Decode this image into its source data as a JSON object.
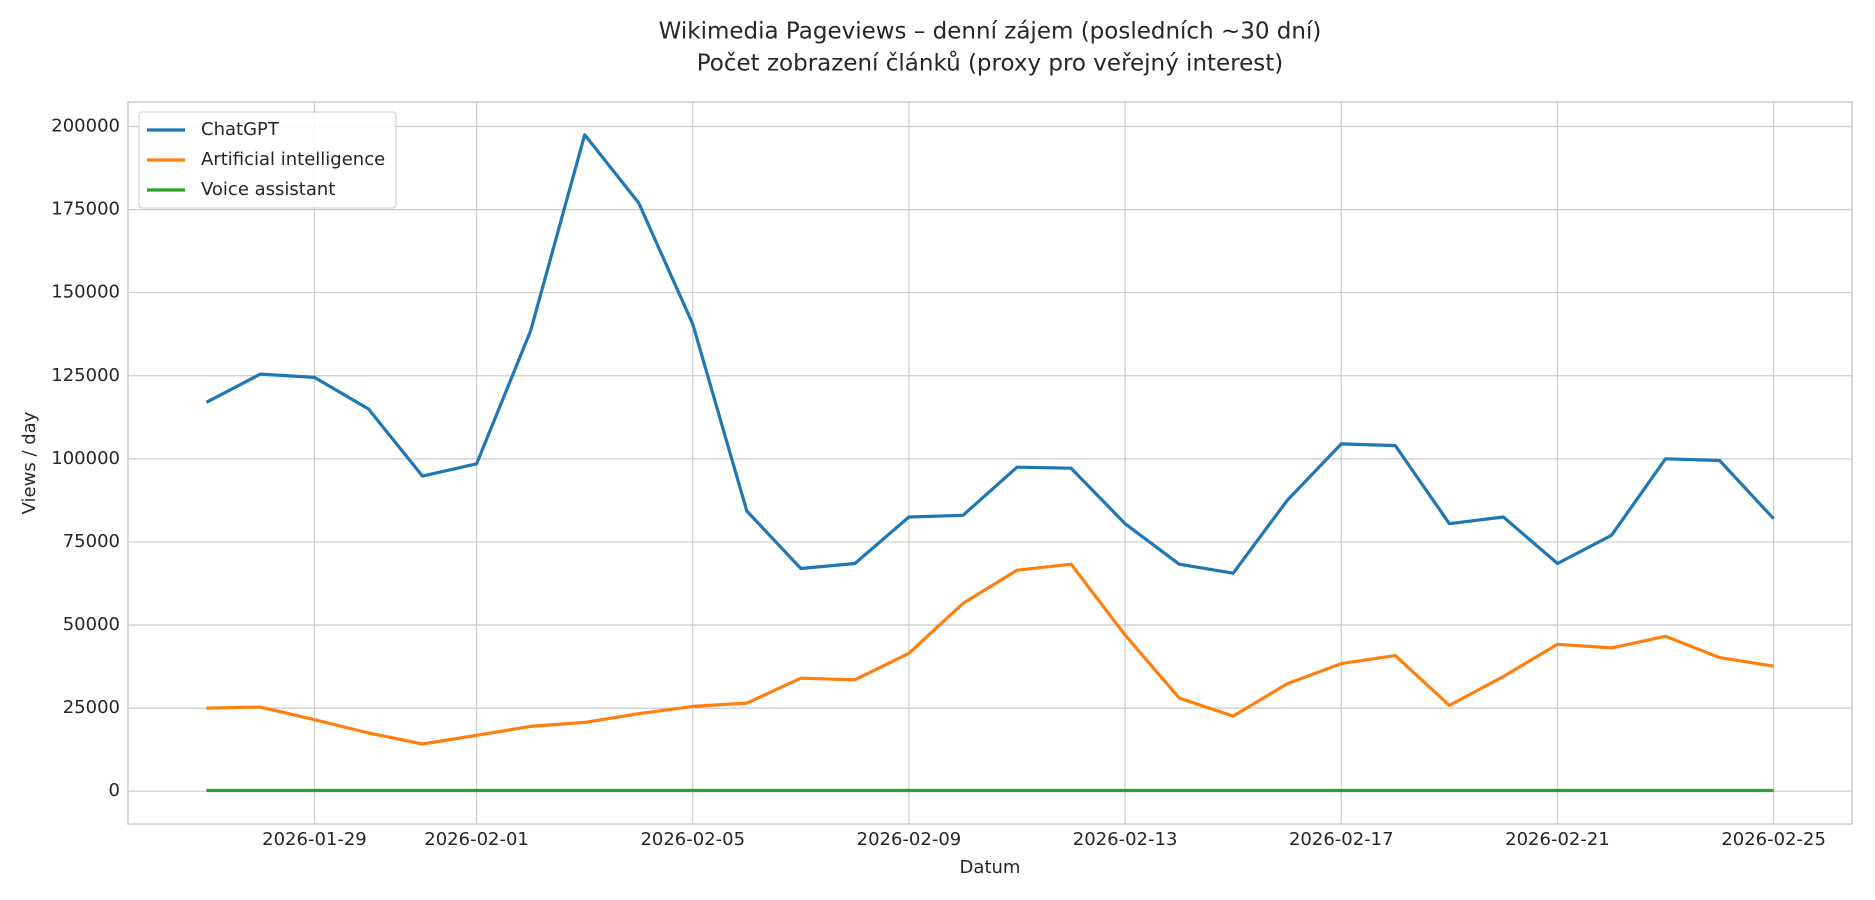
{
  "chart_data": {
    "type": "line",
    "title": "Wikimedia Pageviews – denní zájem (posledních ~30 dní)",
    "subtitle": "Počet zobrazení článků (proxy pro veřejný interest)",
    "x_label": "Datum",
    "y_label": "Views / day",
    "x": [
      "2026-01-27",
      "2026-01-28",
      "2026-01-29",
      "2026-01-30",
      "2026-01-31",
      "2026-02-01",
      "2026-02-02",
      "2026-02-03",
      "2026-02-04",
      "2026-02-05",
      "2026-02-06",
      "2026-02-07",
      "2026-02-08",
      "2026-02-09",
      "2026-02-10",
      "2026-02-11",
      "2026-02-12",
      "2026-02-13",
      "2026-02-14",
      "2026-02-15",
      "2026-02-16",
      "2026-02-17",
      "2026-02-18",
      "2026-02-19",
      "2026-02-20",
      "2026-02-21",
      "2026-02-22",
      "2026-02-23",
      "2026-02-24",
      "2026-02-25"
    ],
    "series": [
      {
        "name": "ChatGPT",
        "color": "#1f77b4",
        "values": [
          117000,
          125500,
          124500,
          115000,
          94800,
          98500,
          138500,
          197500,
          177000,
          140500,
          84300,
          67000,
          68500,
          82500,
          83000,
          97500,
          97200,
          80500,
          68300,
          65600,
          87500,
          104500,
          104000,
          80500,
          82500,
          68500,
          77000,
          100000,
          99500,
          82000
        ]
      },
      {
        "name": "Artificial intelligence",
        "color": "#ff7f0e",
        "values": [
          25000,
          25300,
          21500,
          17500,
          14200,
          16800,
          19500,
          20700,
          23300,
          25500,
          26500,
          34000,
          33500,
          41500,
          56500,
          66500,
          68300,
          47000,
          28000,
          22600,
          32300,
          38400,
          40800,
          25800,
          34500,
          44200,
          43100,
          46600,
          40200,
          37600
        ]
      },
      {
        "name": "Voice assistant",
        "color": "#2ca02c",
        "values": [
          200,
          200,
          200,
          200,
          200,
          200,
          200,
          200,
          200,
          200,
          200,
          200,
          200,
          200,
          200,
          200,
          200,
          200,
          200,
          200,
          200,
          200,
          200,
          200,
          200,
          200,
          200,
          200,
          200,
          200
        ]
      }
    ],
    "xlim": [
      "2026-01-27",
      "2026-02-25"
    ],
    "xticks": [
      "2026-01-29",
      "2026-02-01",
      "2026-02-05",
      "2026-02-09",
      "2026-02-13",
      "2026-02-17",
      "2026-02-21",
      "2026-02-25"
    ],
    "ylim": [
      -9875,
      207375
    ],
    "yticks": [
      0,
      25000,
      50000,
      75000,
      100000,
      125000,
      150000,
      175000,
      200000
    ],
    "grid": true,
    "legend": "upper left"
  }
}
